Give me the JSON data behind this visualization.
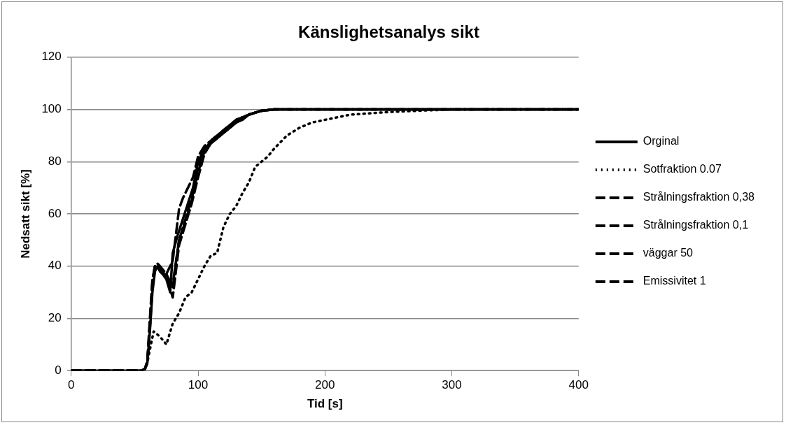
{
  "chart_data": {
    "type": "line",
    "title": "Känslighetsanalys sikt",
    "xlabel": "Tid [s]",
    "ylabel": "Nedsatt sikt [%]",
    "xlim": [
      0,
      400
    ],
    "xticks": [
      0,
      100,
      200,
      300,
      400
    ],
    "ylim": [
      0,
      120
    ],
    "yticks": [
      0,
      20,
      40,
      60,
      80,
      100,
      120
    ],
    "grid": "y",
    "legend": "right",
    "marker": "none",
    "series": [
      {
        "name": "Orginal",
        "color": "#000000",
        "line_style": "solid",
        "x": [
          0,
          55,
          58,
          60,
          62,
          64,
          66,
          68,
          70,
          72,
          75,
          78,
          80,
          84,
          88,
          92,
          96,
          100,
          105,
          110,
          115,
          120,
          125,
          130,
          135,
          140,
          150,
          160,
          200,
          300,
          400
        ],
        "values": [
          0,
          0,
          0.5,
          3,
          15,
          30,
          38,
          40,
          38,
          37,
          35,
          30,
          45,
          52,
          58,
          64,
          70,
          80,
          85,
          87,
          89,
          91,
          93,
          95,
          96,
          98,
          99.5,
          100,
          100,
          100,
          100
        ]
      },
      {
        "name": "Sotfraktion 0.07",
        "color": "#000000",
        "line_style": "dotted",
        "x": [
          0,
          55,
          58,
          60,
          62,
          65,
          70,
          75,
          80,
          85,
          90,
          95,
          100,
          105,
          110,
          115,
          120,
          125,
          130,
          135,
          140,
          145,
          150,
          155,
          160,
          170,
          180,
          190,
          200,
          220,
          250,
          300,
          400
        ],
        "values": [
          0,
          0,
          0.5,
          3,
          8,
          15,
          13,
          10,
          18,
          22,
          28,
          30,
          35,
          40,
          44,
          45,
          55,
          60,
          63,
          68,
          72,
          78,
          80,
          82,
          85,
          90,
          93,
          95,
          96,
          98,
          99,
          100,
          100
        ]
      },
      {
        "name": "Strålningsfraktion 0,38",
        "color": "#000000",
        "line_style": "dashed",
        "x": [
          0,
          55,
          58,
          60,
          62,
          64,
          66,
          68,
          70,
          75,
          80,
          85,
          88,
          92,
          96,
          100,
          105,
          110,
          120,
          130,
          140,
          150,
          160,
          200,
          400
        ],
        "values": [
          0,
          0,
          0.5,
          3,
          18,
          33,
          40,
          41,
          40,
          37,
          42,
          62,
          66,
          70,
          74,
          82,
          86,
          88,
          92,
          96,
          98,
          99.5,
          100,
          100,
          100
        ]
      },
      {
        "name": "Strålningsfraktion 0,1",
        "color": "#000000",
        "line_style": "dashed",
        "x": [
          0,
          55,
          58,
          60,
          62,
          64,
          66,
          68,
          70,
          75,
          80,
          85,
          90,
          95,
          100,
          105,
          110,
          120,
          130,
          140,
          150,
          160,
          200,
          400
        ],
        "values": [
          0,
          0,
          0.5,
          4,
          20,
          35,
          40,
          40,
          38,
          36,
          33,
          50,
          58,
          66,
          76,
          84,
          87,
          91,
          95,
          98,
          99.5,
          100,
          100,
          100
        ]
      },
      {
        "name": "väggar 50",
        "color": "#000000",
        "line_style": "dashed",
        "x": [
          0,
          55,
          58,
          60,
          62,
          64,
          66,
          68,
          70,
          75,
          80,
          85,
          90,
          95,
          100,
          105,
          110,
          120,
          130,
          140,
          150,
          160,
          200,
          400
        ],
        "values": [
          0,
          0,
          0.5,
          3,
          16,
          32,
          39,
          40,
          39,
          36,
          28,
          48,
          56,
          64,
          74,
          83,
          87,
          91,
          95,
          98,
          99.5,
          100,
          100,
          100
        ]
      },
      {
        "name": "Emissivitet 1",
        "color": "#000000",
        "line_style": "dashed",
        "x": [
          0,
          55,
          58,
          60,
          62,
          64,
          66,
          68,
          70,
          75,
          80,
          85,
          90,
          95,
          100,
          105,
          110,
          120,
          130,
          140,
          150,
          160,
          200,
          400
        ],
        "values": [
          0,
          0,
          0.5,
          3,
          17,
          34,
          40,
          41,
          39,
          37,
          32,
          50,
          57,
          65,
          78,
          84,
          88,
          92,
          96,
          98,
          99.5,
          100,
          100,
          100
        ]
      }
    ]
  }
}
